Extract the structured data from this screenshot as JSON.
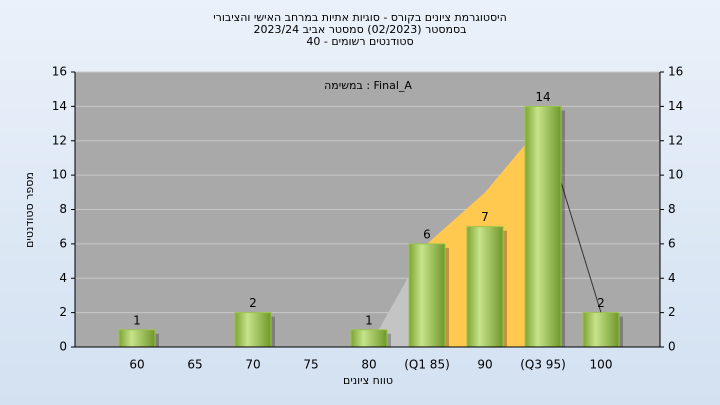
{
  "chart_data": {
    "type": "bar",
    "title": [
      "היסטוגרמת ציונים בקורס - סוגיות אתיות במרחב האישי והציבורי",
      "בסמסטר  (02/2023)  סמסטר אביב 2023/24",
      "סטודנטים רשומים - 40"
    ],
    "annotation": "במשימה : Final_A",
    "x_label": "טווח ציונים",
    "y_label": "מספר סטודנטים",
    "categories": [
      "60",
      "65",
      "70",
      "75",
      "80",
      "(Q1 85)",
      "90",
      "(Q3 95)",
      "100"
    ],
    "values": [
      1,
      null,
      2,
      null,
      1,
      6,
      7,
      14,
      2
    ],
    "color": "#9cc44a",
    "area": {
      "values": [
        null,
        null,
        null,
        null,
        0,
        6,
        9,
        13,
        2
      ],
      "color": "#ffc94f",
      "first_color": "#c4c4c4"
    },
    "ylim": [
      0,
      16
    ],
    "yticks": [
      0,
      2,
      4,
      6,
      8,
      10,
      12,
      14,
      16
    ],
    "y2lim": [
      0,
      16
    ],
    "y2ticks": [
      0,
      2,
      4,
      6,
      8,
      10,
      12,
      14,
      16
    ],
    "grid": true
  }
}
